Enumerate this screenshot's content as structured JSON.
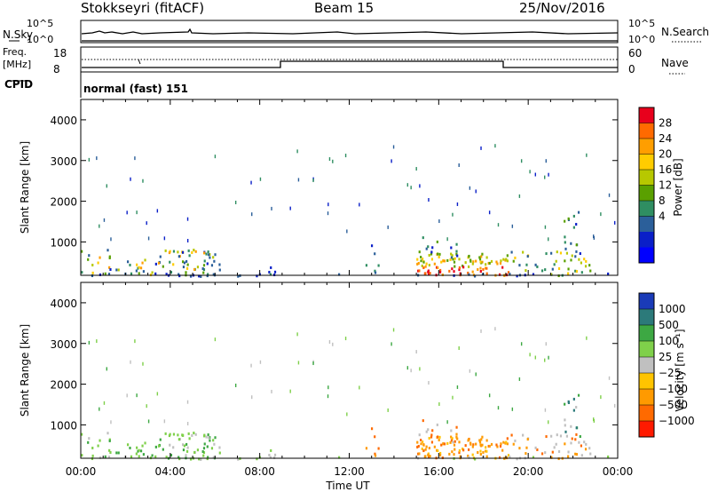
{
  "header": {
    "station": "Stokkseyri (fitACF)",
    "beam": "Beam 15",
    "date": "25/Nov/2016"
  },
  "strip": {
    "nsky_label": "N.Sky",
    "nsky_ticks": [
      "10^5",
      "10^0"
    ],
    "nsearch_label": "N.Search",
    "nsearch_ticks": [
      "10^5",
      "10^0"
    ],
    "freq_label": "Freq.",
    "freq_unit": "[MHz]",
    "freq_ticks": [
      "18",
      "8"
    ],
    "nave_label": "Nave",
    "nave_ticks": [
      "60",
      "0"
    ],
    "cpid_label": "CPID",
    "cpid_text": "normal (fast) 151"
  },
  "chart_data": [
    {
      "type": "heatmap",
      "name": "power",
      "ylabel": "Slant Range [km]",
      "xlabel": "",
      "xlim": [
        0,
        24
      ],
      "ylim": [
        180,
        4500
      ],
      "yticks": [
        "1000",
        "2000",
        "3000",
        "4000"
      ],
      "colorbar_label": "Power [dB]",
      "colorbar_ticks": [
        "28",
        "24",
        "20",
        "16",
        "12",
        "8",
        "4"
      ],
      "colorbar_colors": [
        "#e8001c",
        "#ff6a00",
        "#ff9e00",
        "#ffcc00",
        "#b7c800",
        "#5aa000",
        "#2f8e62",
        "#2b5f9a",
        "#0a1fc8",
        "#0000ff"
      ]
    },
    {
      "type": "heatmap",
      "name": "velocity",
      "ylabel": "Slant Range [km]",
      "xlabel": "Time UT",
      "xlim": [
        0,
        24
      ],
      "ylim": [
        180,
        4500
      ],
      "yticks": [
        "1000",
        "2000",
        "3000",
        "4000"
      ],
      "xticks": [
        "00:00",
        "04:00",
        "08:00",
        "12:00",
        "16:00",
        "20:00",
        "00:00"
      ],
      "colorbar_label": "Velocity [m s⁻¹]",
      "colorbar_ticks": [
        "1000",
        "500",
        "100",
        "25",
        "−25",
        "−100",
        "−500",
        "−1000"
      ],
      "colorbar_colors": [
        "#1a3bb8",
        "#2c7a7a",
        "#3da843",
        "#7fd04a",
        "#c0c0c0",
        "#ffc400",
        "#ff9a00",
        "#ff6a00",
        "#ff1a00"
      ]
    }
  ]
}
